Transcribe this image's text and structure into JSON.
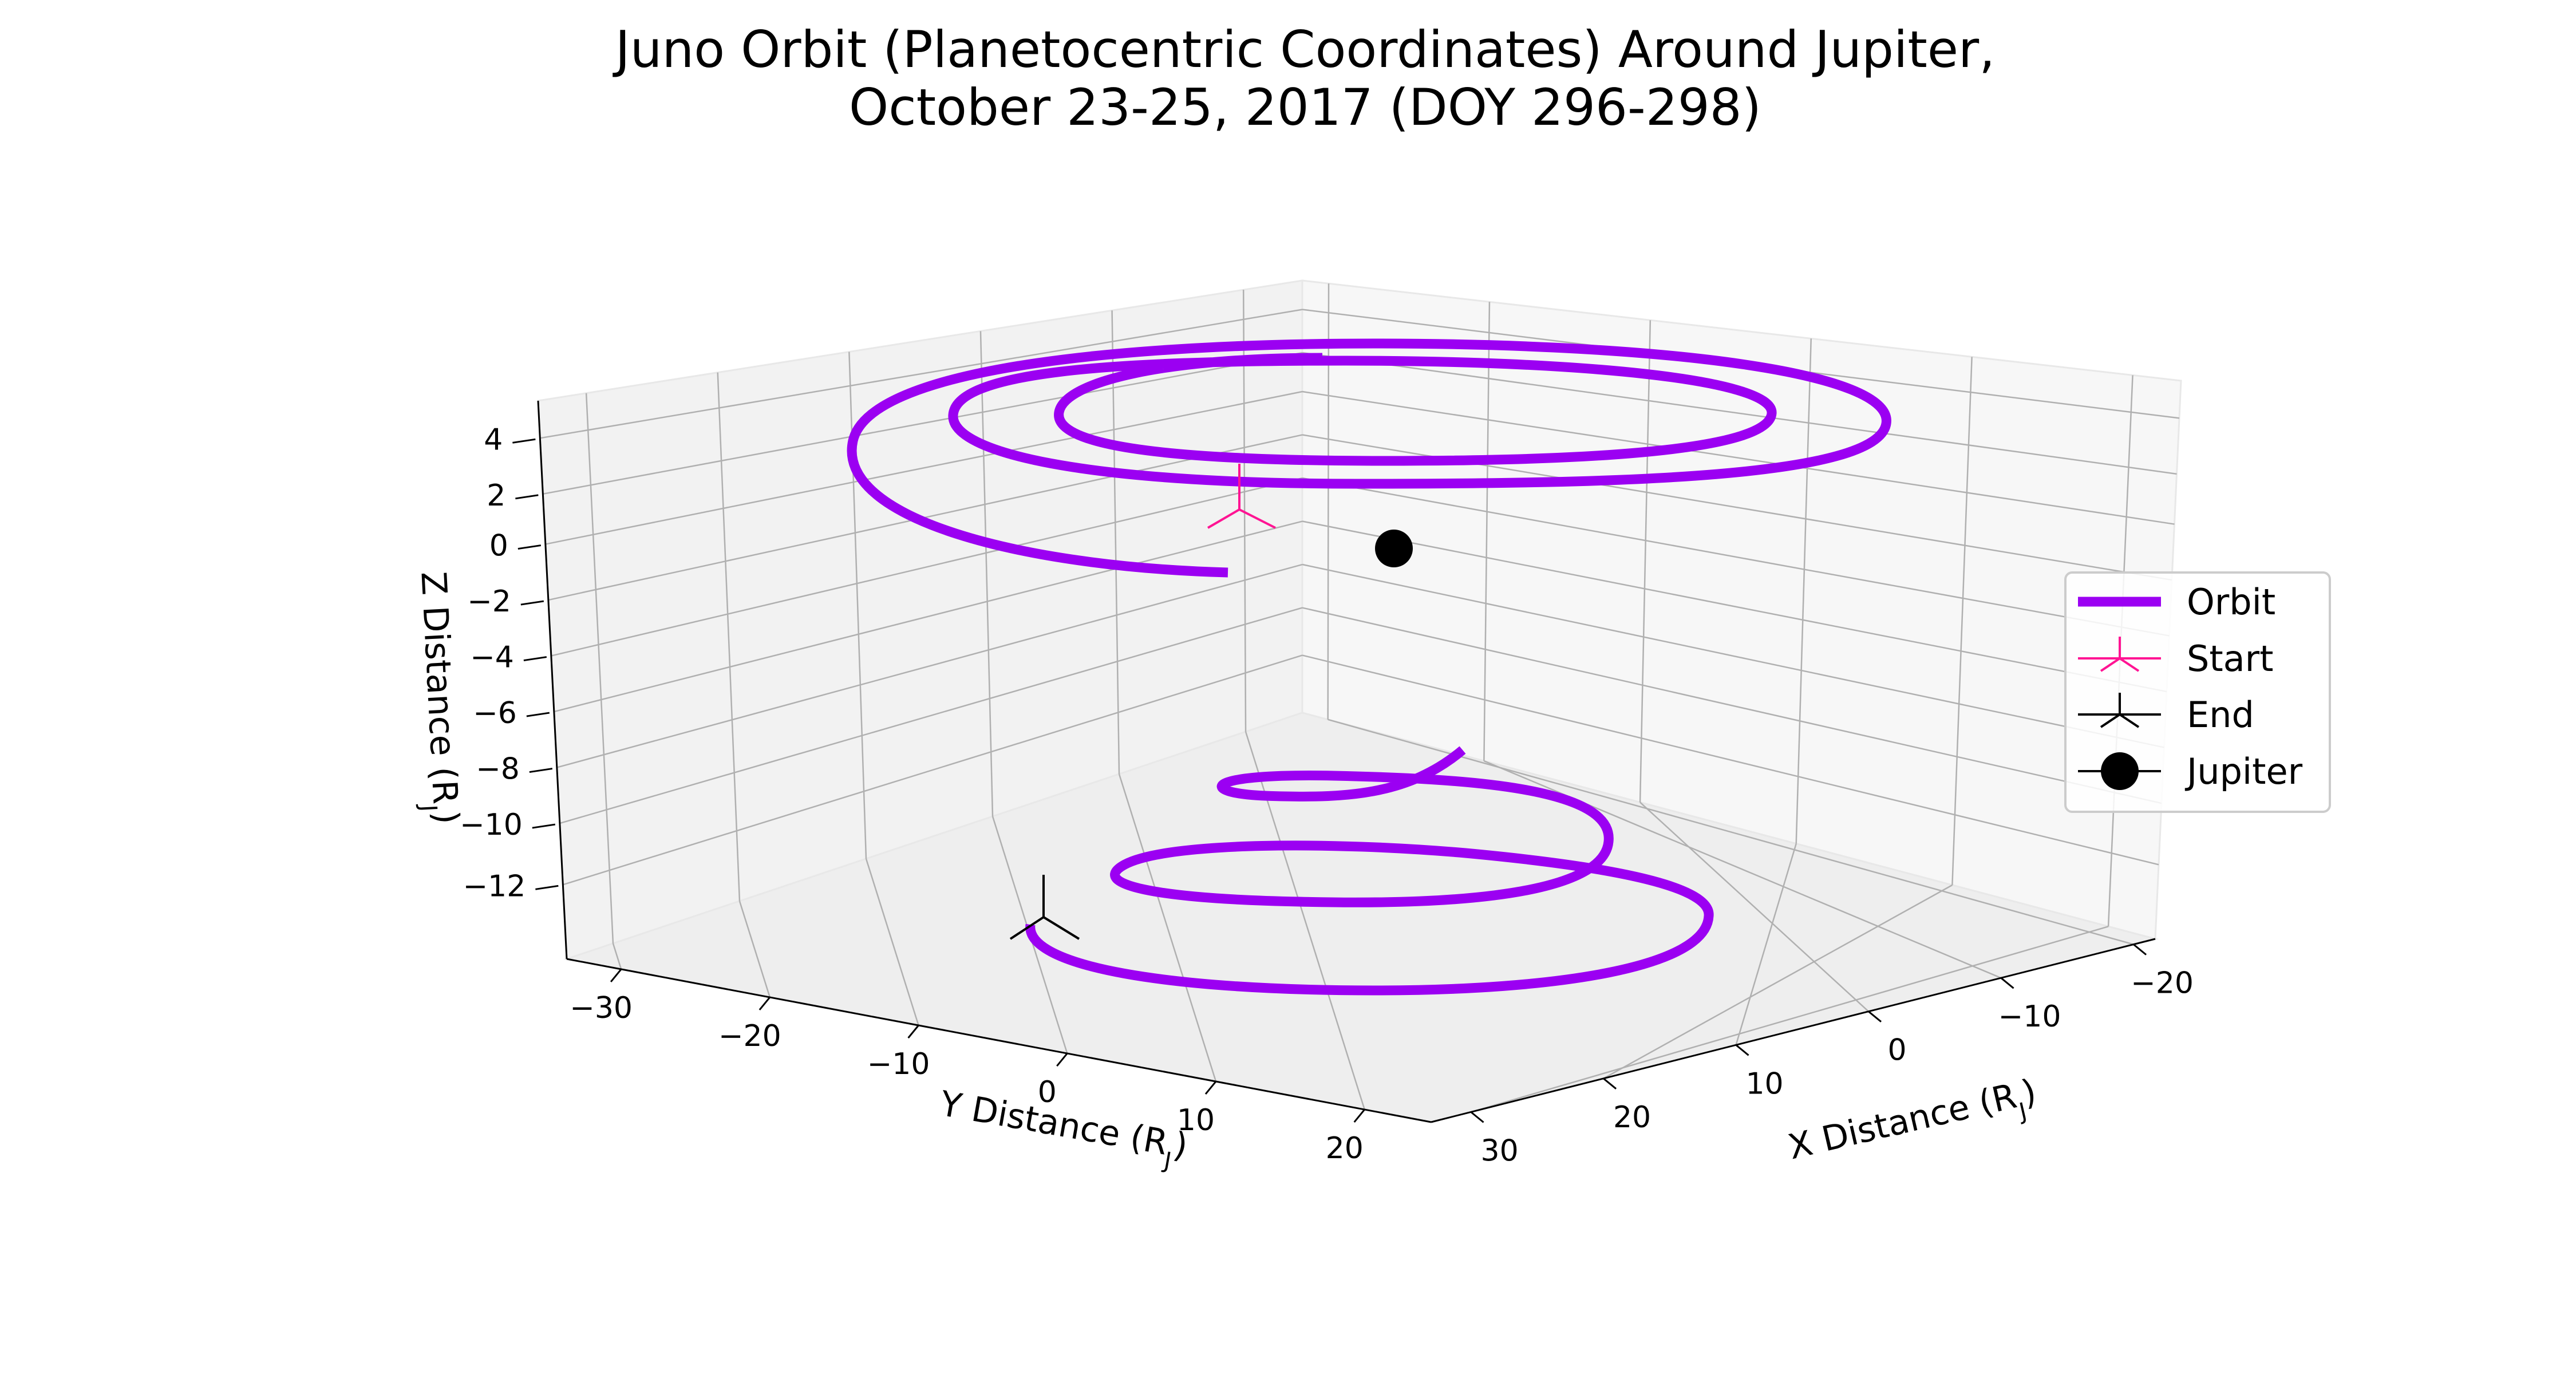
{
  "chart_data": {
    "type": "line3d",
    "title": [
      "Juno Orbit (Planetocentric Coordinates) Around Jupiter,",
      "October 23-25, 2017 (DOY 296-298)"
    ],
    "xlabel": "X Distance (R",
    "ylabel": "Y Distance (R",
    "zlabel": "Z Distance (R",
    "label_subscript": "J",
    "label_close": ")",
    "xticks": [
      "30",
      "20",
      "10",
      "0",
      "−10",
      "−20"
    ],
    "yticks": [
      "−30",
      "−20",
      "−10",
      "0",
      "10",
      "20"
    ],
    "zticks": [
      "4",
      "2",
      "0",
      "−2",
      "−4",
      "−6",
      "−8",
      "−10",
      "−12"
    ],
    "grid": true,
    "legend_position": "center-right",
    "series": [
      {
        "name": "Orbit",
        "color": "#9b00f2",
        "marker": "line"
      },
      {
        "name": "Start",
        "color": "#ff1493",
        "marker": "tri-up"
      },
      {
        "name": "End",
        "color": "#000000",
        "marker": "tri-up"
      },
      {
        "name": "Jupiter",
        "color": "#000000",
        "marker": "circle"
      }
    ]
  }
}
